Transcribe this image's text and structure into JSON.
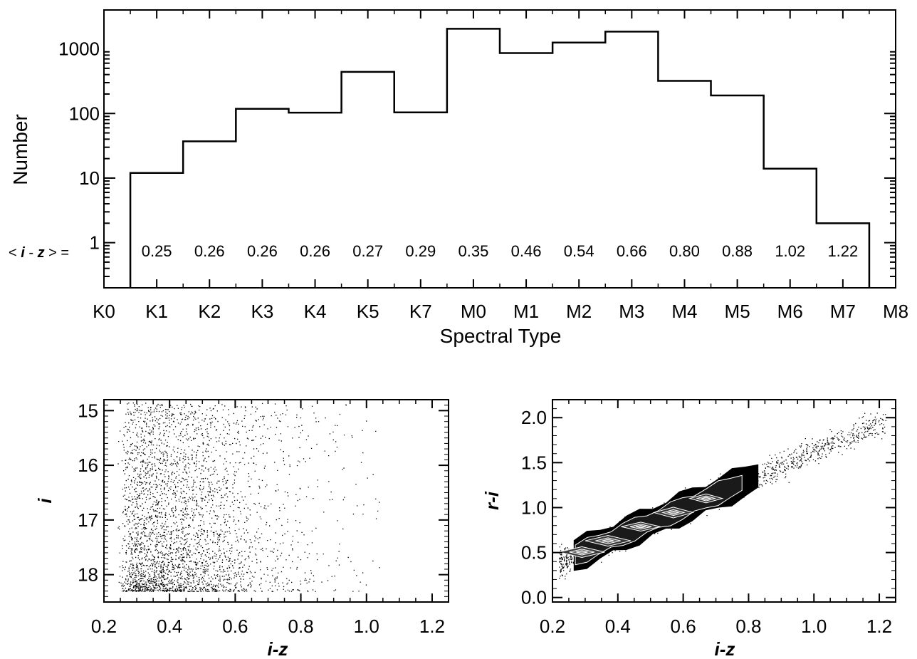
{
  "chart_data": [
    {
      "type": "bar",
      "subtype": "step-histogram",
      "xlabel": "Spectral Type",
      "ylabel": "Number",
      "yscale": "log",
      "ylim": [
        0.2,
        4000
      ],
      "yticks": [
        "1",
        "10",
        "100",
        "1000"
      ],
      "yticks_values": [
        1,
        10,
        100,
        1000
      ],
      "xtick_labels": [
        "K0",
        "K1",
        "K2",
        "K3",
        "K4",
        "K5",
        "K7",
        "M0",
        "M1",
        "M2",
        "M3",
        "M4",
        "M5",
        "M6",
        "M7",
        "M8"
      ],
      "bins": [
        "K0-K1",
        "K1-K2",
        "K2-K3",
        "K3-K4",
        "K4-K5",
        "K5-K7",
        "K7-M0",
        "M0-M1",
        "M1-M2",
        "M2-M3",
        "M3-M4",
        "M4-M5",
        "M5-M6",
        "M6-M7"
      ],
      "values": [
        12,
        37,
        118,
        103,
        440,
        104,
        2050,
        860,
        1250,
        1850,
        320,
        190,
        14,
        2
      ],
      "mean_color_label": {
        "open": "< ",
        "var1": "i",
        "dash": " - ",
        "var2": "z",
        "close": " > ="
      },
      "mean_i_minus_z": [
        "0.25",
        "0.26",
        "0.26",
        "0.26",
        "0.27",
        "0.29",
        "0.35",
        "0.46",
        "0.54",
        "0.66",
        "0.80",
        "0.88",
        "1.02",
        "1.22"
      ]
    },
    {
      "type": "scatter",
      "xlabel": "i-z",
      "ylabel": "i",
      "xlim": [
        0.2,
        1.25
      ],
      "ylim": [
        18.5,
        14.8
      ],
      "y_inverted": true,
      "xticks": [
        "0.2",
        "0.4",
        "0.6",
        "0.8",
        "1.0",
        "1.2"
      ],
      "yticks": [
        "15",
        "16",
        "17",
        "18"
      ],
      "point_count_approx": 6000,
      "note": "dense cloud of points, densest at i-z 0.25-0.7 and i 17.3-18.3"
    },
    {
      "type": "scatter",
      "subtype": "scatter-with-density-contours",
      "xlabel": "r-i",
      "ylabel_fixed": "r-i",
      "xaxis_label": "i-z",
      "xlim": [
        0.2,
        1.25
      ],
      "ylim": [
        -0.05,
        2.2
      ],
      "xticks": [
        "0.2",
        "0.4",
        "0.6",
        "0.8",
        "1.0",
        "1.2"
      ],
      "yticks": [
        "0.0",
        "0.5",
        "1.0",
        "1.5",
        "2.0"
      ],
      "relation": "r-i ≈ 1.57·(i-z) + 0.05 (tight linear locus)"
    }
  ]
}
